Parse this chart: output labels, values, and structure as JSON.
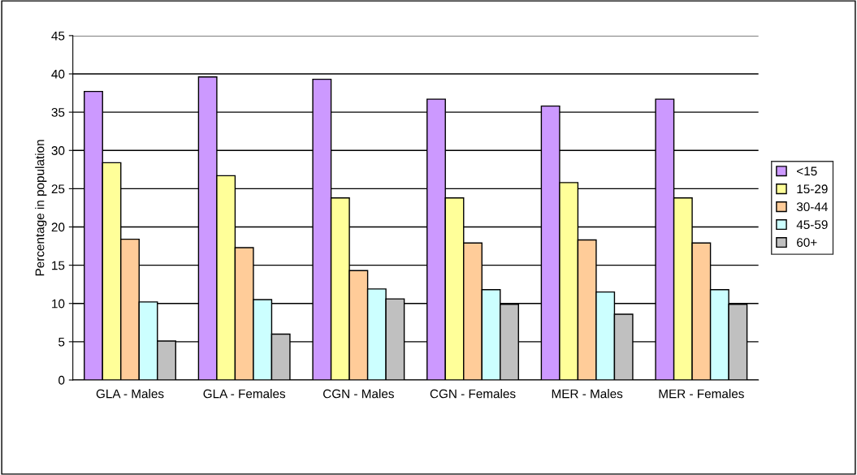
{
  "chart_data": {
    "type": "bar",
    "ylabel": "Percentage in population",
    "categories": [
      "GLA - Males",
      "GLA - Females",
      "CGN - Males",
      "CGN - Females",
      "MER - Males",
      "MER - Females"
    ],
    "series": [
      {
        "name": "<15",
        "color": "#cc99ff",
        "values": [
          37.7,
          39.6,
          39.3,
          36.7,
          35.8,
          36.7
        ]
      },
      {
        "name": "15-29",
        "color": "#ffff99",
        "values": [
          28.4,
          26.7,
          23.8,
          23.8,
          25.8,
          23.8
        ]
      },
      {
        "name": "30-44",
        "color": "#ffcc99",
        "values": [
          18.4,
          17.3,
          14.3,
          17.9,
          18.3,
          17.9
        ]
      },
      {
        "name": "45-59",
        "color": "#ccffff",
        "values": [
          10.2,
          10.5,
          11.9,
          11.8,
          11.5,
          11.8
        ]
      },
      {
        "name": "60+",
        "color": "#c0c0c0",
        "values": [
          5.1,
          6.0,
          10.6,
          9.9,
          8.6,
          9.9
        ]
      }
    ],
    "ylim": [
      0,
      45
    ],
    "yticks": [
      0,
      5,
      10,
      15,
      20,
      25,
      30,
      35,
      40,
      45
    ],
    "grid": "y",
    "legend": "right"
  }
}
